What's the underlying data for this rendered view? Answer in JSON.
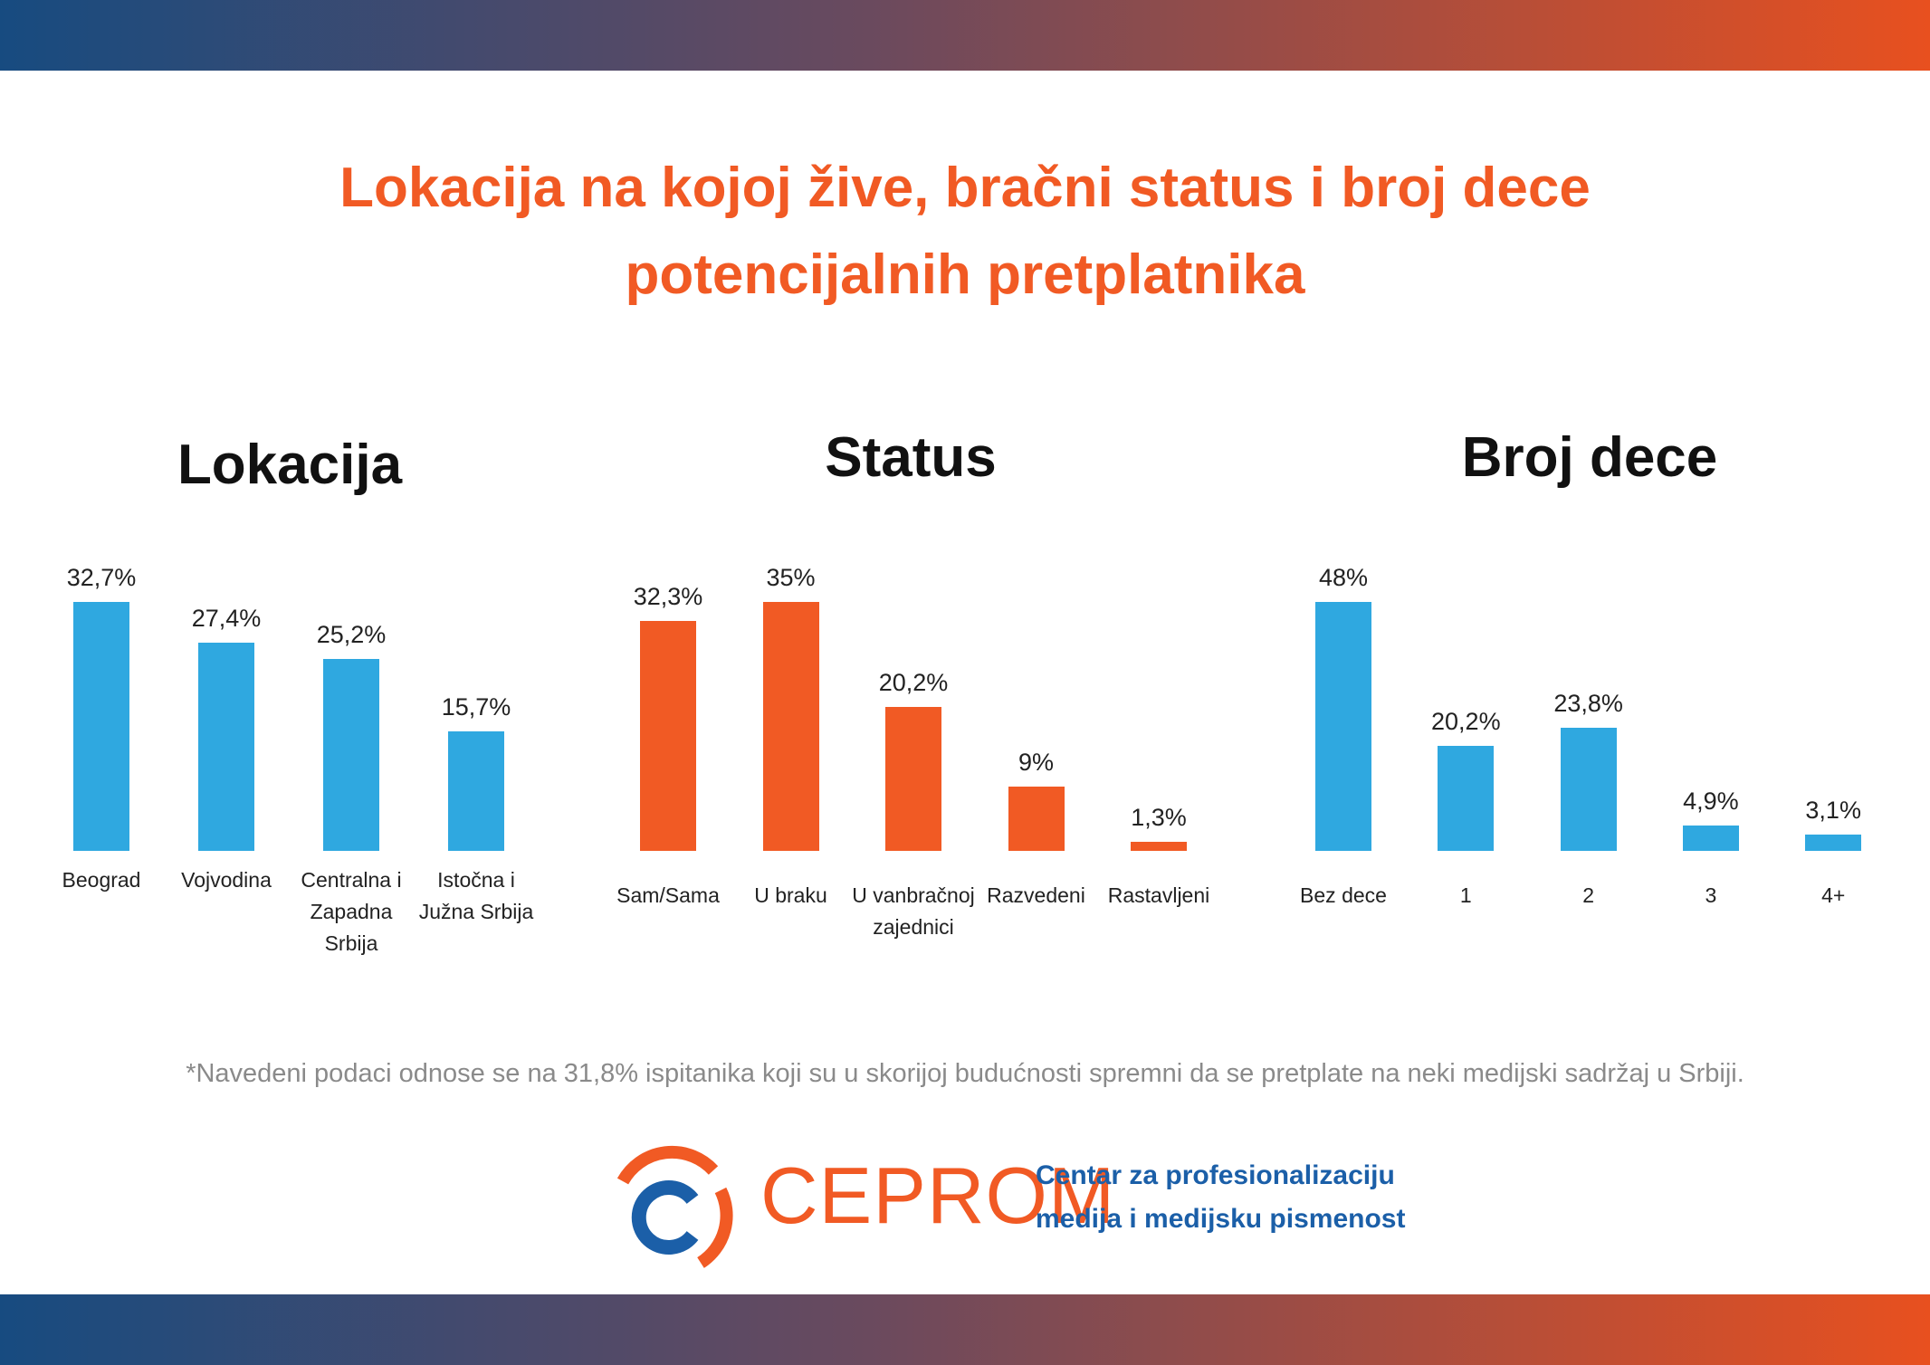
{
  "title": "Lokacija na kojoj žive, bračni status i broj dece potencijalnih pretplatnika",
  "chart_data": [
    {
      "type": "bar",
      "title": "Lokacija",
      "color": "#2fa8e0",
      "categories": [
        "Beograd",
        "Vojvodina",
        "Centralna i Zapadna Srbija",
        "Istočna i Južna Srbija"
      ],
      "values": [
        32.7,
        27.4,
        25.2,
        15.7
      ],
      "value_labels": [
        "32,7%",
        "27,4%",
        "25,2%",
        "15,7%"
      ]
    },
    {
      "type": "bar",
      "title": "Status",
      "color": "#f15a24",
      "categories": [
        "Sam/Sama",
        "U braku",
        "U vanbračnoj zajednici",
        "Razvedeni",
        "Rastavljeni"
      ],
      "values": [
        32.3,
        35,
        20.2,
        9,
        1.3
      ],
      "value_labels": [
        "32,3%",
        "35%",
        "20,2%",
        "9%",
        "1,3%"
      ]
    },
    {
      "type": "bar",
      "title": "Broj dece",
      "color": "#2fa8e0",
      "categories": [
        "Bez dece",
        "1",
        "2",
        "3",
        "4+"
      ],
      "values": [
        48,
        20.2,
        23.8,
        4.9,
        3.1
      ],
      "value_labels": [
        "48%",
        "20,2%",
        "23,8%",
        "4,9%",
        "3,1%"
      ]
    }
  ],
  "footnote": "*Navedeni podaci odnose se na 31,8% ispitanika koji su u skorijoj budućnosti spremni da se pretplate na neki medijski sadržaj u Srbiji.",
  "logo": {
    "name": "CEPROM",
    "tagline": [
      "Centar za profesionalizaciju",
      "medija i medijsku pismenost"
    ]
  }
}
